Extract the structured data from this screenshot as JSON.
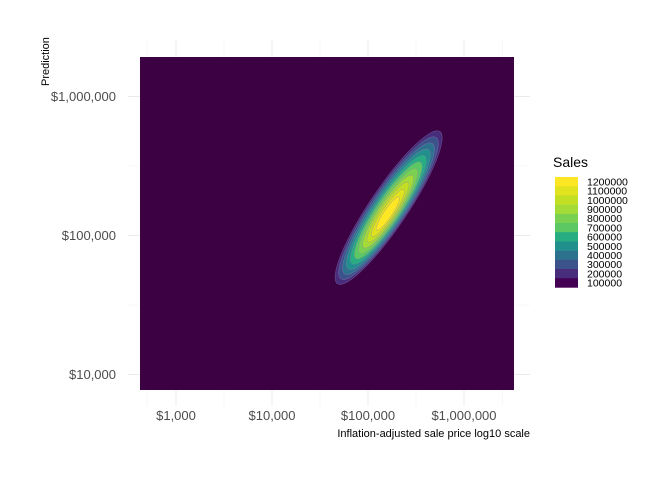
{
  "chart_data": {
    "type": "heatmap",
    "subtype": "filled-density-contour",
    "xlabel": "Inflation-adjusted sale price log10 scale",
    "ylabel": "Prediction",
    "x_scale": "log10",
    "y_scale": "log10",
    "xlim": [
      400,
      3000000
    ],
    "ylim": [
      7500,
      2000000
    ],
    "x_ticks": [
      {
        "value": 1000,
        "label": "$1,000"
      },
      {
        "value": 10000,
        "label": "$10,000"
      },
      {
        "value": 100000,
        "label": "$100,000"
      },
      {
        "value": 1000000,
        "label": "$1,000,000"
      }
    ],
    "y_ticks": [
      {
        "value": 10000,
        "label": "$10,000"
      },
      {
        "value": 100000,
        "label": "$100,000"
      },
      {
        "value": 1000000,
        "label": "$1,000,000"
      }
    ],
    "grid": true,
    "legend": {
      "title": "Sales",
      "placement": "right",
      "levels": [
        {
          "value": 100000,
          "label": "100000",
          "color": "#440154"
        },
        {
          "value": 200000,
          "label": "200000",
          "color": "#472d7b"
        },
        {
          "value": 300000,
          "label": "300000",
          "color": "#3b528b"
        },
        {
          "value": 400000,
          "label": "400000",
          "color": "#2c728e"
        },
        {
          "value": 500000,
          "label": "500000",
          "color": "#21908d"
        },
        {
          "value": 600000,
          "label": "600000",
          "color": "#27ad81"
        },
        {
          "value": 700000,
          "label": "700000",
          "color": "#5cc863"
        },
        {
          "value": 800000,
          "label": "800000",
          "color": "#7ad151"
        },
        {
          "value": 900000,
          "label": "900000",
          "color": "#a5db36"
        },
        {
          "value": 1000000,
          "label": "1000000",
          "color": "#c2df23"
        },
        {
          "value": 1100000,
          "label": "1100000",
          "color": "#e0e31e"
        },
        {
          "value": 1200000,
          "label": "1200000",
          "color": "#fde725"
        }
      ]
    },
    "background_color": "#3b0142",
    "density_peak": {
      "x": 160000,
      "y": 140000,
      "value": 1200000
    },
    "density_extent": {
      "x": [
        48000,
        560000
      ],
      "y": [
        45000,
        560000
      ]
    }
  }
}
